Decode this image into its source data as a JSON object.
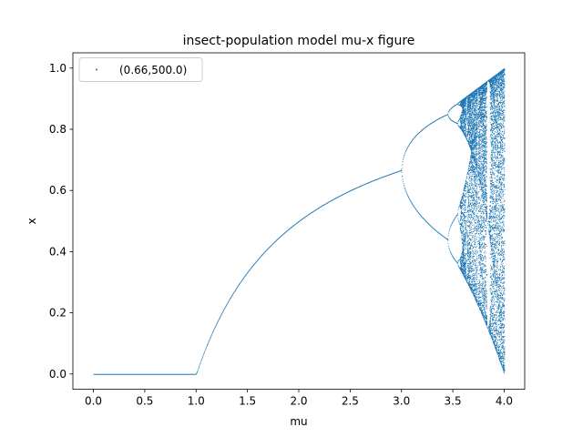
{
  "chart_data": {
    "type": "scatter",
    "title": "insect-population model mu-x figure",
    "xlabel": "mu",
    "ylabel": "x",
    "xlim": [
      -0.2,
      4.2
    ],
    "ylim": [
      -0.05,
      1.05
    ],
    "xticks": [
      "0.0",
      "0.5",
      "1.0",
      "1.5",
      "2.0",
      "2.5",
      "3.0",
      "3.5",
      "4.0"
    ],
    "yticks": [
      "0.0",
      "0.2",
      "0.4",
      "0.6",
      "0.8",
      "1.0"
    ],
    "grid": false,
    "legend": {
      "placement": "upper-left",
      "entries": [
        "(0.66,500.0)"
      ]
    },
    "series": [
      {
        "name": "(0.66,500.0)",
        "color": "#1f77b4",
        "marker_size": 1,
        "model": "logistic map x(n+1) = mu*x(n)*(1-x(n))",
        "mu_range": [
          0.0,
          4.0
        ],
        "x0": 0.66,
        "iterations": 500,
        "points": [
          [
            0.0,
            0.0
          ],
          [
            0.5,
            0.0
          ],
          [
            1.0,
            0.0
          ],
          [
            1.5,
            0.333
          ],
          [
            2.0,
            0.5
          ],
          [
            2.5,
            0.6
          ],
          [
            3.0,
            0.66
          ],
          [
            3.2,
            0.513
          ],
          [
            3.4,
            0.452
          ],
          [
            3.5,
            0.5
          ],
          [
            3.6,
            0.37
          ],
          [
            3.8,
            0.92
          ],
          [
            4.0,
            1.0
          ],
          [
            4.0,
            0.0
          ]
        ]
      }
    ]
  }
}
